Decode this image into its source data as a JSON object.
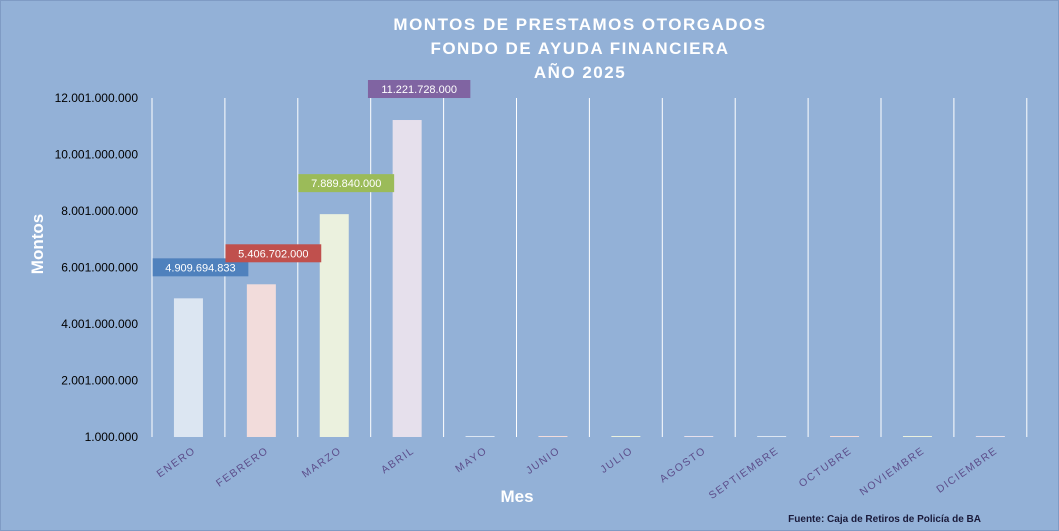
{
  "chart_data": {
    "type": "bar",
    "title_lines": [
      "MONTOS  DE  PRESTAMOS  OTORGADOS",
      "FONDO  DE  AYUDA  FINANCIERA",
      "AÑO   2025"
    ],
    "xlabel": "Mes",
    "ylabel": "Montos",
    "source": "Fuente: Caja de Retiros de Policía de BA",
    "categories": [
      "ENERO",
      "FEBRERO",
      "MARZO",
      "ABRIL",
      "MAYO",
      "JUNIO",
      "JULIO",
      "AGOSTO",
      "SEPTIEMBRE",
      "OCTUBRE",
      "NOVIEMBRE",
      "DICIEMBRE"
    ],
    "values": [
      4909694833,
      5406702000,
      7889840000,
      11221728000,
      0,
      0,
      0,
      0,
      0,
      0,
      0,
      0
    ],
    "data_labels": [
      "4.909.694.833",
      "5.406.702.000",
      "7.889.840.000",
      "11.221.728.000",
      "",
      "",
      "",
      "",
      "",
      "",
      "",
      ""
    ],
    "ylim": [
      1000000,
      12001000000
    ],
    "yticks": [
      1000000,
      2001000000,
      4001000000,
      6001000000,
      8001000000,
      10001000000,
      12001000000
    ],
    "ytick_labels": [
      "1.000.000",
      "2.001.000.000",
      "4.001.000.000",
      "6.001.000.000",
      "8.001.000.000",
      "10.001.000.000",
      "12.001.000.000"
    ],
    "grid": "vertical",
    "colors": {
      "background": "#93b1d7",
      "grid": "#ffffff",
      "bars": [
        "#dce6f2",
        "#f2dcdb",
        "#ebf1de",
        "#e6e0ec",
        "#dce6f2",
        "#f2dcdb",
        "#ebf1de",
        "#e6e0ec",
        "#dce6f2",
        "#f2dcdb",
        "#ebf1de",
        "#e6e0ec"
      ],
      "label_boxes": [
        "#4f81bd",
        "#c0504d",
        "#9bbb59",
        "#8064a2"
      ]
    }
  }
}
